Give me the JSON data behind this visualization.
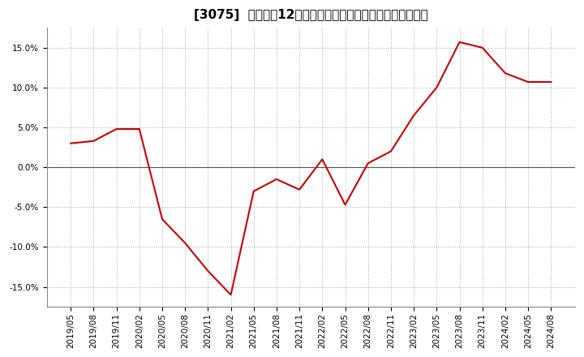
{
  "title": "[3075]  売上高の12か月移動合計の対前年同期増減率の推移",
  "x_labels": [
    "2019/05",
    "2019/08",
    "2019/11",
    "2020/02",
    "2020/05",
    "2020/08",
    "2020/11",
    "2021/02",
    "2021/05",
    "2021/08",
    "2021/11",
    "2022/02",
    "2022/05",
    "2022/08",
    "2022/11",
    "2023/02",
    "2023/05",
    "2023/08",
    "2023/11",
    "2024/02",
    "2024/05",
    "2024/08"
  ],
  "y_values": [
    0.03,
    0.033,
    0.048,
    0.048,
    -0.065,
    -0.095,
    -0.13,
    -0.16,
    -0.03,
    -0.015,
    -0.028,
    0.01,
    -0.047,
    0.005,
    0.02,
    0.065,
    0.1,
    0.157,
    0.15,
    0.118,
    0.107,
    0.107
  ],
  "line_color": "#cc0000",
  "line_width": 1.5,
  "background_color": "#ffffff",
  "plot_bg_color": "#ffffff",
  "grid_color": "#aaaaaa",
  "zero_line_color": "#555555",
  "ylim": [
    -0.175,
    0.175
  ],
  "yticks": [
    -0.15,
    -0.1,
    -0.05,
    0.0,
    0.05,
    0.1,
    0.15
  ],
  "title_fontsize": 11,
  "tick_fontsize": 7.5
}
